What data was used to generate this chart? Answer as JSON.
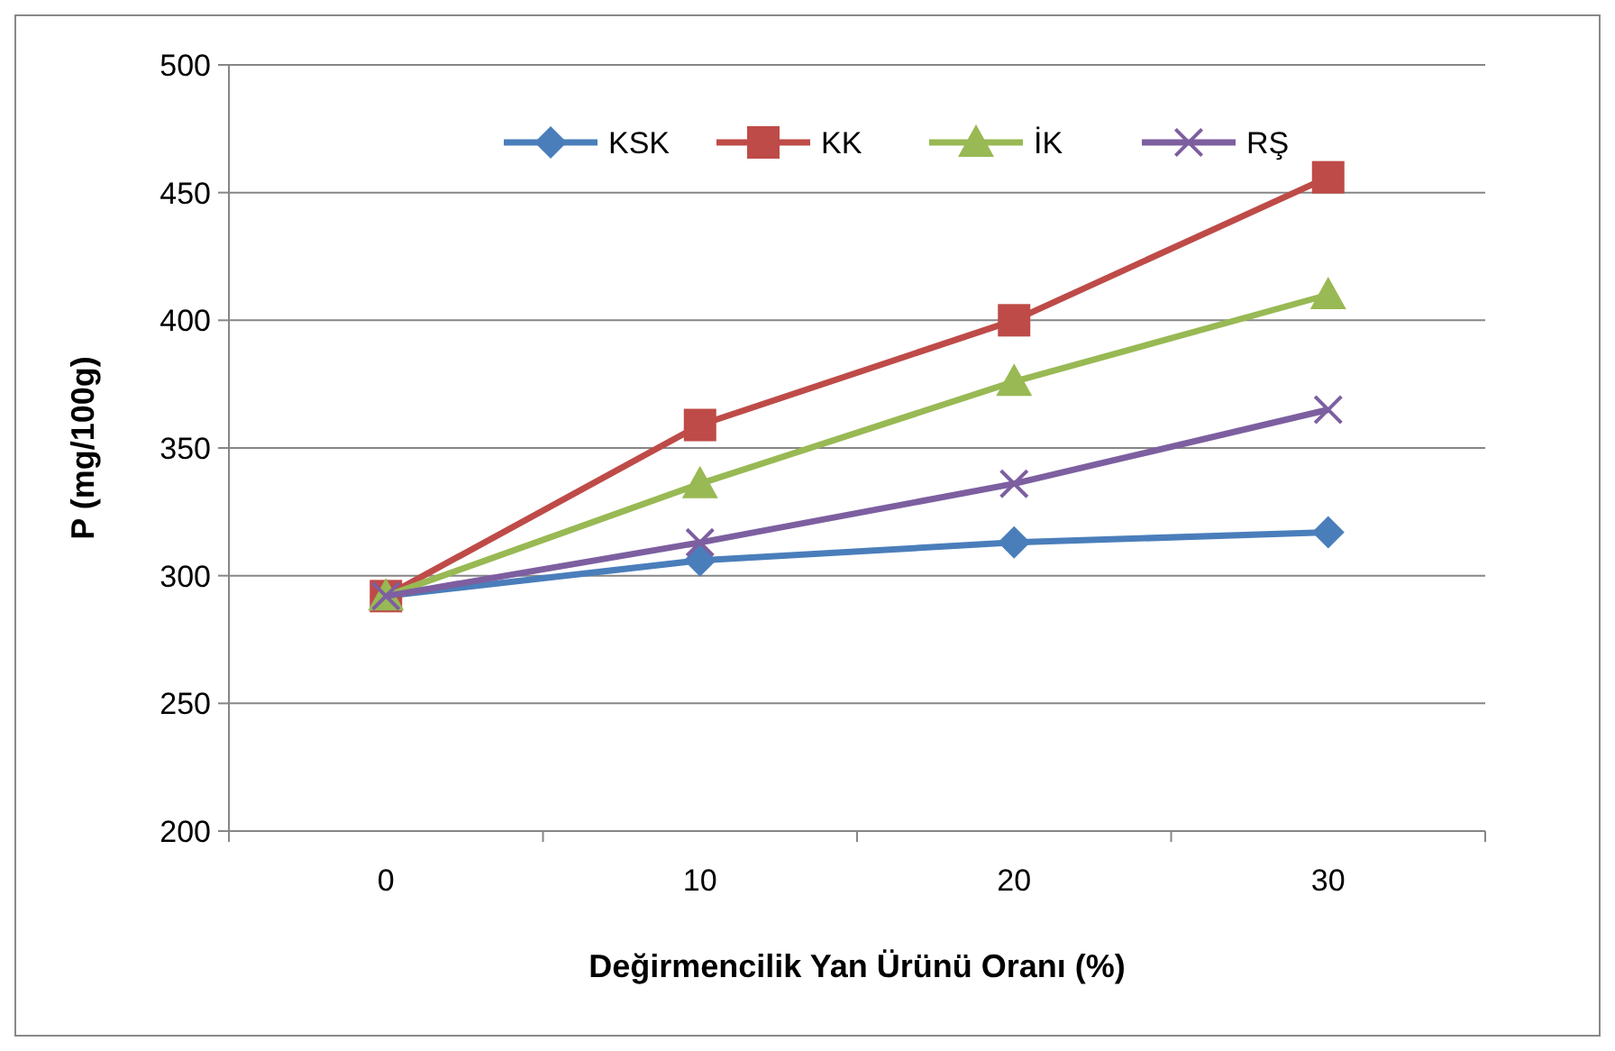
{
  "chart_data": {
    "type": "line",
    "xlabel": "Değirmencilik Yan Ürünü Oranı (%)",
    "ylabel": "P (mg/100g)",
    "categories": [
      "0",
      "10",
      "20",
      "30"
    ],
    "ylim": [
      200,
      500
    ],
    "yticks": [
      200,
      250,
      300,
      350,
      400,
      450,
      500
    ],
    "grid": "y",
    "legend": "top",
    "series": [
      {
        "name": "KSK",
        "color": "#4a7ebb",
        "marker": "diamond",
        "values": [
          292,
          306,
          313,
          317
        ]
      },
      {
        "name": "KK",
        "color": "#be4b48",
        "marker": "square",
        "values": [
          292,
          359,
          400,
          456
        ]
      },
      {
        "name": "İK",
        "color": "#98b954",
        "marker": "triangle",
        "values": [
          292,
          336,
          376,
          410
        ]
      },
      {
        "name": "RŞ",
        "color": "#7d5fa0",
        "marker": "cross",
        "values": [
          292,
          313,
          336,
          365
        ]
      }
    ]
  }
}
